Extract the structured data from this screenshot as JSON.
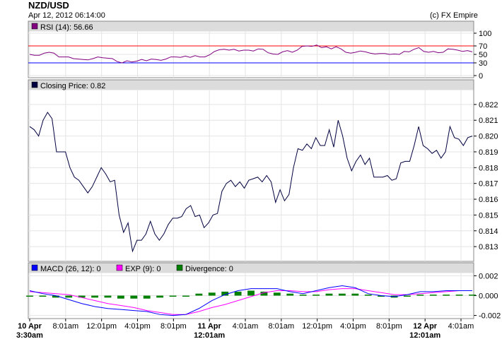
{
  "header": {
    "title": "NZD/USD",
    "date": "Apr 12, 2012 06:14:00",
    "copyright": "(c) FX Empire"
  },
  "colors": {
    "rsi": "#800080",
    "price": "#000040",
    "macd": "#0000ff",
    "exp": "#ff00ff",
    "divergence": "#008000",
    "rsi_upper": "#ff0000",
    "rsi_lower": "#0000ff"
  },
  "chart_data": [
    {
      "type": "line",
      "panel": "rsi",
      "legend": "RSI (14): 56.66",
      "ylim": [
        0,
        100
      ],
      "yticks": [
        "100",
        "70",
        "50",
        "30",
        "0"
      ],
      "ytick_values": [
        100,
        70,
        50,
        30,
        0
      ],
      "levels": [
        70,
        30
      ],
      "values": [
        50,
        48,
        48,
        53,
        55,
        53,
        44,
        44,
        44,
        40,
        39,
        38,
        37,
        40,
        44,
        42,
        41,
        40,
        33,
        30,
        35,
        32,
        34,
        38,
        35,
        39,
        38,
        36,
        39,
        44,
        44,
        43,
        46,
        43,
        47,
        44,
        44,
        49,
        57,
        61,
        62,
        60,
        62,
        58,
        60,
        60,
        58,
        63,
        62,
        54,
        51,
        50,
        56,
        59,
        55,
        60,
        69,
        70,
        69,
        72,
        66,
        68,
        63,
        68,
        63,
        55,
        53,
        55,
        58,
        56,
        53,
        51,
        52,
        52,
        50,
        51,
        50,
        57,
        56,
        62,
        66,
        57,
        55,
        57,
        54,
        55,
        63,
        62,
        60,
        57,
        59,
        56
      ]
    },
    {
      "type": "line",
      "panel": "price",
      "legend": "Closing Price: 0.82",
      "ylim": [
        0.8122,
        0.8228
      ],
      "yticks": [
        "0.822",
        "0.821",
        "0.820",
        "0.819",
        "0.818",
        "0.817",
        "0.816",
        "0.815",
        "0.814",
        "0.813"
      ],
      "ytick_values": [
        0.822,
        0.821,
        0.82,
        0.819,
        0.818,
        0.817,
        0.816,
        0.815,
        0.814,
        0.813
      ],
      "values": [
        0.8206,
        0.8204,
        0.82,
        0.821,
        0.8215,
        0.8211,
        0.819,
        0.819,
        0.819,
        0.818,
        0.8174,
        0.8172,
        0.8168,
        0.8164,
        0.8168,
        0.8174,
        0.818,
        0.8176,
        0.8171,
        0.8172,
        0.815,
        0.8139,
        0.8145,
        0.8127,
        0.8134,
        0.8134,
        0.8138,
        0.8146,
        0.8138,
        0.8134,
        0.8138,
        0.8144,
        0.8148,
        0.8148,
        0.8149,
        0.8154,
        0.8156,
        0.8149,
        0.815,
        0.8142,
        0.8145,
        0.815,
        0.8151,
        0.8165,
        0.817,
        0.8172,
        0.8168,
        0.8171,
        0.8167,
        0.8172,
        0.8173,
        0.8174,
        0.8171,
        0.8175,
        0.8171,
        0.8158,
        0.8166,
        0.8159,
        0.8163,
        0.818,
        0.8192,
        0.8191,
        0.8195,
        0.8192,
        0.8199,
        0.8194,
        0.8194,
        0.8204,
        0.8193,
        0.821,
        0.82,
        0.8186,
        0.8178,
        0.8184,
        0.8188,
        0.8182,
        0.8186,
        0.8174,
        0.8174,
        0.8174,
        0.8175,
        0.8172,
        0.8173,
        0.8183,
        0.8184,
        0.8184,
        0.8194,
        0.8206,
        0.8194,
        0.8192,
        0.8189,
        0.8191,
        0.8186,
        0.819,
        0.8206,
        0.8199,
        0.8198,
        0.8194,
        0.8199,
        0.82
      ]
    },
    {
      "type": "line",
      "panel": "macd",
      "ylim": [
        -0.0021,
        0.0021
      ],
      "yticks": [
        "0.002",
        "0.000",
        "-0.002"
      ],
      "ytick_values": [
        0.002,
        0.0,
        -0.002
      ],
      "legend_items": [
        {
          "name": "MACD (26, 12): 0",
          "color": "#0000ff"
        },
        {
          "name": "EXP (9): 0",
          "color": "#ff00ff"
        },
        {
          "name": "Divergence: 0",
          "color": "#008000"
        }
      ],
      "series": [
        {
          "name": "MACD (26, 12): 0",
          "values": [
            0.0005,
            0.0002,
            0.0,
            -0.0004,
            -0.0008,
            -0.0011,
            -0.0013,
            -0.0014,
            -0.0015,
            -0.0016,
            -0.0019,
            -0.002,
            -0.0019,
            -0.0013,
            -0.0005,
            0.0001,
            0.0005,
            0.0007,
            0.0007,
            0.0007,
            0.0004,
            0.0002,
            0.0005,
            0.0008,
            0.001,
            0.0008,
            0.0002,
            0.0,
            -0.0001,
            0.0001,
            0.0004,
            0.0004,
            0.0005,
            0.0005,
            0.0005
          ]
        },
        {
          "name": "EXP (9): 0",
          "values": [
            0.0004,
            0.0003,
            0.0002,
            0.0001,
            -0.0002,
            -0.0005,
            -0.0008,
            -0.001,
            -0.0012,
            -0.0015,
            -0.0017,
            -0.0019,
            -0.0019,
            -0.0016,
            -0.0012,
            -0.0009,
            -0.0005,
            -0.0001,
            0.0003,
            0.0005,
            0.0005,
            0.0004,
            0.0004,
            0.0006,
            0.0007,
            0.0007,
            0.0005,
            0.0003,
            0.0001,
            0.0001,
            0.0002,
            0.0003,
            0.0004,
            0.0005,
            0.0005
          ]
        },
        {
          "name": "Divergence: 0",
          "type": "bar",
          "values": [
            -0.0001,
            -0.0001,
            -0.0002,
            -0.0002,
            -0.0002,
            -0.0002,
            -0.0002,
            -0.0003,
            -0.0003,
            -0.0003,
            -0.0002,
            -0.0001,
            0.0,
            0.0002,
            0.0003,
            0.0004,
            0.0004,
            0.0005,
            0.0004,
            0.0003,
            0.0002,
            0.0001,
            0.0001,
            0.0002,
            0.0002,
            0.0002,
            0.0001,
            -0.0001,
            -0.0002,
            -0.0001,
            0.0001,
            0.0001,
            0.0001,
            0.0001,
            0.0001
          ]
        }
      ]
    }
  ],
  "x_axis": {
    "labels": [
      {
        "line1": "10 Apr",
        "line2": "3:30am",
        "bold": true
      },
      {
        "line1": "8:01am",
        "line2": "",
        "bold": false
      },
      {
        "line1": "12:01pm",
        "line2": "",
        "bold": false
      },
      {
        "line1": "4:01pm",
        "line2": "",
        "bold": false
      },
      {
        "line1": "8:01pm",
        "line2": "",
        "bold": false
      },
      {
        "line1": "11 Apr",
        "line2": "12:01am",
        "bold": true
      },
      {
        "line1": "4:01am",
        "line2": "",
        "bold": false
      },
      {
        "line1": "8:01am",
        "line2": "",
        "bold": false
      },
      {
        "line1": "12:01pm",
        "line2": "",
        "bold": false
      },
      {
        "line1": "4:01pm",
        "line2": "",
        "bold": false
      },
      {
        "line1": "8:01pm",
        "line2": "",
        "bold": false
      },
      {
        "line1": "12 Apr",
        "line2": "12:01am",
        "bold": true
      },
      {
        "line1": "4:01am",
        "line2": "",
        "bold": false
      }
    ]
  }
}
